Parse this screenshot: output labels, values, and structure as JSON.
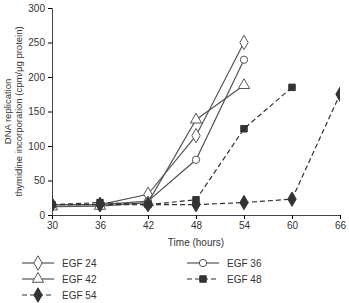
{
  "chart_data": {
    "type": "line",
    "xlabel": "Time (hours)",
    "ylabel": [
      "DNA replication",
      "thymidine incorporation (cpm/μg protein)"
    ],
    "x": [
      30,
      36,
      42,
      48,
      54,
      60,
      66
    ],
    "xlim": [
      30,
      66
    ],
    "xticks": [
      30,
      36,
      42,
      48,
      54,
      60,
      66
    ],
    "ylim": [
      0,
      300
    ],
    "yticks": [
      0,
      50,
      100,
      150,
      200,
      250,
      300
    ],
    "legend": "bottom",
    "series": [
      {
        "name": "EGF 24",
        "color": "#555555",
        "marker": "open-diamond",
        "line_style": "solid",
        "values": [
          15,
          15,
          30,
          115,
          250,
          null,
          null
        ]
      },
      {
        "name": "EGF 36",
        "color": "#555555",
        "marker": "open-circle",
        "line_style": "solid",
        "values": [
          15,
          15,
          20,
          80,
          225,
          null,
          null
        ]
      },
      {
        "name": "EGF 42",
        "color": "#555555",
        "marker": "open-triangle",
        "line_style": "solid",
        "values": [
          12,
          13,
          18,
          138,
          188,
          null,
          null
        ]
      },
      {
        "name": "EGF 48",
        "color": "#333333",
        "marker": "square",
        "line_style": "dashed",
        "values": [
          15,
          18,
          15,
          22,
          125,
          185,
          null
        ]
      },
      {
        "name": "EGF 54",
        "color": "#333333",
        "marker": "diamond",
        "line_style": "dashed",
        "values": [
          15,
          15,
          15,
          15,
          18,
          23,
          175
        ]
      }
    ]
  }
}
